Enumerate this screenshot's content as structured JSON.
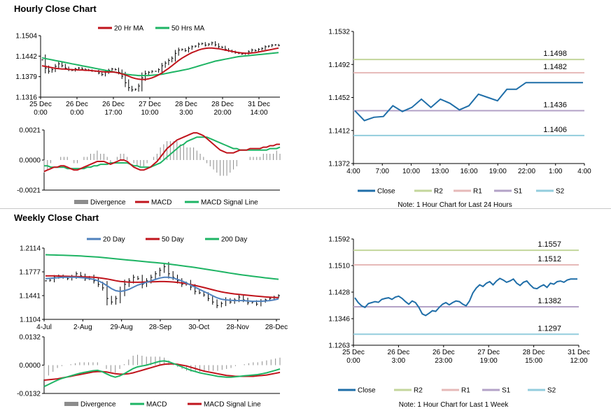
{
  "sections": {
    "hourly_title": "Hourly Close Chart",
    "weekly_title": "Weekly Close Chart"
  },
  "colors": {
    "ma_short": "#c0141c",
    "ma_long": "#1eb464",
    "ma_200": "#1eb464",
    "ma_20_weekly": "#4f81bd",
    "close": "#1f6ea8",
    "r2": "#c3d69b",
    "r1": "#e6b9b8",
    "s1": "#b3a2c7",
    "s2": "#93cddd",
    "divergence": "#8c8c8c",
    "price": "#000000"
  },
  "chart_data": [
    {
      "id": "hourly-price",
      "type": "line",
      "title": "",
      "legend": [
        "20 Hr MA",
        "50 Hrs MA"
      ],
      "yticks": [
        "1.1504",
        "1.1442",
        "1.1379",
        "1.1316"
      ],
      "ylim": [
        1.1316,
        1.1504
      ],
      "xticks": [
        [
          "25 Dec",
          "0:00"
        ],
        [
          "26 Dec",
          "0:00"
        ],
        [
          "26 Dec",
          "17:00"
        ],
        [
          "27 Dec",
          "10:00"
        ],
        [
          "28 Dec",
          "3:00"
        ],
        [
          "28 Dec",
          "20:00"
        ],
        [
          "31 Dec",
          "14:00"
        ]
      ],
      "price": [
        1.143,
        1.1405,
        1.1395,
        1.14,
        1.141,
        1.1418,
        1.1412,
        1.1405,
        1.14,
        1.1398,
        1.1402,
        1.1405,
        1.1402,
        1.14,
        1.1398,
        1.1396,
        1.1395,
        1.139,
        1.1385,
        1.1392,
        1.1398,
        1.1402,
        1.14,
        1.1392,
        1.138,
        1.136,
        1.1345,
        1.1338,
        1.134,
        1.135,
        1.1375,
        1.1388,
        1.1392,
        1.1395,
        1.1395,
        1.14,
        1.1412,
        1.142,
        1.1428,
        1.1435,
        1.145,
        1.146,
        1.1462,
        1.1458,
        1.1465,
        1.147,
        1.1472,
        1.1478,
        1.148,
        1.1475,
        1.1478,
        1.1482,
        1.1476,
        1.147,
        1.1468,
        1.1462,
        1.1458,
        1.1455,
        1.1452,
        1.145,
        1.1448,
        1.145,
        1.1455,
        1.146,
        1.1458,
        1.1462,
        1.1465,
        1.147,
        1.1472,
        1.1475,
        1.1476,
        1.1474
      ],
      "ma20": [
        1.1412,
        1.141,
        1.1408,
        1.1406,
        1.1404,
        1.1403,
        1.1402,
        1.1402,
        1.1401,
        1.14,
        1.14,
        1.1399,
        1.1399,
        1.1398,
        1.1398,
        1.1397,
        1.1396,
        1.1395,
        1.1394,
        1.1393,
        1.1393,
        1.1393,
        1.1392,
        1.139,
        1.1387,
        1.1384,
        1.138,
        1.1376,
        1.1373,
        1.1371,
        1.137,
        1.137,
        1.1372,
        1.1375,
        1.1379,
        1.1384,
        1.139,
        1.1397,
        1.1404,
        1.1412,
        1.142,
        1.1428,
        1.1435,
        1.1441,
        1.1447,
        1.1452,
        1.1456,
        1.146,
        1.1463,
        1.1465,
        1.1466,
        1.1466,
        1.1465,
        1.1464,
        1.1462,
        1.146,
        1.1458,
        1.1456,
        1.1454,
        1.1452,
        1.1451,
        1.145,
        1.145,
        1.1451,
        1.1452,
        1.1454,
        1.1456,
        1.1458,
        1.146,
        1.1462,
        1.1464,
        1.1466
      ],
      "ma50": [
        1.1436,
        1.1434,
        1.1432,
        1.143,
        1.1428,
        1.1426,
        1.1424,
        1.1422,
        1.142,
        1.1418,
        1.1416,
        1.1414,
        1.1412,
        1.141,
        1.1408,
        1.1406,
        1.1404,
        1.1402,
        1.14,
        1.1398,
        1.1396,
        1.1394,
        1.1392,
        1.139,
        1.1388,
        1.1386,
        1.1385,
        1.1384,
        1.1383,
        1.1382,
        1.1382,
        1.1382,
        1.1382,
        1.1383,
        1.1384,
        1.1385,
        1.1386,
        1.1388,
        1.139,
        1.1392,
        1.1394,
        1.1396,
        1.1398,
        1.14,
        1.1402,
        1.1405,
        1.1408,
        1.1411,
        1.1414,
        1.1417,
        1.142,
        1.1423,
        1.1426,
        1.1428,
        1.143,
        1.1432,
        1.1434,
        1.1436,
        1.1438,
        1.144,
        1.1441,
        1.1442,
        1.1443,
        1.1444,
        1.1445,
        1.1446,
        1.1447,
        1.1448,
        1.1449,
        1.145,
        1.1451,
        1.1452
      ]
    },
    {
      "id": "hourly-macd",
      "type": "line",
      "title": "",
      "legend": [
        "Divergence",
        "MACD",
        "MACD Signal Line"
      ],
      "yticks": [
        "0.0021",
        "0.0000",
        "-0.0021"
      ],
      "ylim": [
        -0.0021,
        0.0021
      ],
      "macd": [
        -0.0008,
        -0.0007,
        -0.0006,
        -0.0005,
        -0.0005,
        -0.0004,
        -0.0004,
        -0.0005,
        -0.0006,
        -0.0007,
        -0.0007,
        -0.0006,
        -0.0005,
        -0.0004,
        -0.0003,
        -0.0002,
        -0.0001,
        -0.0001,
        -0.0001,
        -0.0002,
        -0.0003,
        -0.0002,
        -0.0001,
        0.0,
        0.0,
        -0.0001,
        -0.0003,
        -0.0005,
        -0.0006,
        -0.0007,
        -0.0007,
        -0.0006,
        -0.0005,
        -0.0003,
        -0.0001,
        0.0002,
        0.0005,
        0.0008,
        0.001,
        0.0012,
        0.0014,
        0.0015,
        0.0016,
        0.0017,
        0.0018,
        0.0019,
        0.0019,
        0.0018,
        0.0017,
        0.0015,
        0.0013,
        0.0011,
        0.0009,
        0.0007,
        0.0006,
        0.0005,
        0.0005,
        0.0005,
        0.0006,
        0.0007,
        0.0007,
        0.0007,
        0.0008,
        0.0008,
        0.0008,
        0.0008,
        0.0009,
        0.0009,
        0.001,
        0.001,
        0.0011,
        0.0011
      ],
      "signal": [
        -0.0004,
        -0.0004,
        -0.0005,
        -0.0005,
        -0.0005,
        -0.0005,
        -0.0005,
        -0.0006,
        -0.0006,
        -0.0006,
        -0.0006,
        -0.0006,
        -0.0006,
        -0.0005,
        -0.0005,
        -0.0004,
        -0.0004,
        -0.0003,
        -0.0003,
        -0.0003,
        -0.0002,
        -0.0002,
        -0.0002,
        -0.0002,
        -0.0002,
        -0.0002,
        -0.0003,
        -0.0004,
        -0.0004,
        -0.0005,
        -0.0005,
        -0.0005,
        -0.0005,
        -0.0004,
        -0.0003,
        -0.0002,
        0.0,
        0.0002,
        0.0004,
        0.0006,
        0.0008,
        0.001,
        0.0011,
        0.0013,
        0.0014,
        0.0015,
        0.0016,
        0.0016,
        0.0016,
        0.0016,
        0.0015,
        0.0014,
        0.0013,
        0.0012,
        0.0011,
        0.001,
        0.0009,
        0.0008,
        0.0008,
        0.0007,
        0.0007,
        0.0007,
        0.0007,
        0.0007,
        0.0007,
        0.0007,
        0.0007,
        0.0007,
        0.0008,
        0.0008,
        0.0008,
        0.0009
      ]
    },
    {
      "id": "hourly-levels",
      "type": "line",
      "title": "",
      "legend": [
        "Close",
        "R2",
        "R1",
        "S1",
        "S2"
      ],
      "note": "Note: 1 Hour Chart for Last 24 Hours",
      "yticks": [
        "1.1532",
        "1.1492",
        "1.1452",
        "1.1412",
        "1.1372"
      ],
      "ylim": [
        1.1372,
        1.1532
      ],
      "xticks": [
        "4:00",
        "7:00",
        "10:00",
        "13:00",
        "16:00",
        "19:00",
        "22:00",
        "1:00",
        "4:00"
      ],
      "levels": [
        {
          "name": "R2",
          "value": 1.1498,
          "label": "1.1498"
        },
        {
          "name": "R1",
          "value": 1.1482,
          "label": "1.1482"
        },
        {
          "name": "S1",
          "value": 1.1436,
          "label": "1.1436"
        },
        {
          "name": "S2",
          "value": 1.1406,
          "label": "1.1406"
        }
      ],
      "close": [
        1.1436,
        1.1424,
        1.1428,
        1.1429,
        1.1442,
        1.1435,
        1.144,
        1.145,
        1.144,
        1.145,
        1.1445,
        1.1437,
        1.1442,
        1.1456,
        1.1452,
        1.1448,
        1.1462,
        1.1462,
        1.147,
        1.147,
        1.147,
        1.147,
        1.147,
        1.147,
        1.147
      ]
    },
    {
      "id": "weekly-price",
      "type": "line",
      "title": "",
      "legend": [
        "20 Day",
        "50 Day",
        "200 Day"
      ],
      "yticks": [
        "1.2114",
        "1.1777",
        "1.1441",
        "1.1104"
      ],
      "ylim": [
        1.1104,
        1.2114
      ],
      "xticks": [
        "4-Jul",
        "2-Aug",
        "29-Aug",
        "28-Sep",
        "30-Oct",
        "28-Nov",
        "28-Dec"
      ],
      "price": [
        1.165,
        1.166,
        1.17,
        1.172,
        1.17,
        1.168,
        1.171,
        1.175,
        1.172,
        1.168,
        1.17,
        1.165,
        1.16,
        1.155,
        1.14,
        1.135,
        1.14,
        1.15,
        1.16,
        1.165,
        1.17,
        1.168,
        1.16,
        1.165,
        1.17,
        1.175,
        1.18,
        1.185,
        1.175,
        1.17,
        1.165,
        1.16,
        1.162,
        1.156,
        1.15,
        1.148,
        1.145,
        1.14,
        1.135,
        1.13,
        1.133,
        1.138,
        1.135,
        1.138,
        1.142,
        1.138,
        1.134,
        1.135,
        1.132,
        1.136,
        1.138,
        1.14,
        1.142,
        1.144
      ],
      "ma20": [
        1.168,
        1.1685,
        1.169,
        1.1695,
        1.17,
        1.17,
        1.17,
        1.17,
        1.1695,
        1.169,
        1.168,
        1.167,
        1.165,
        1.162,
        1.158,
        1.154,
        1.151,
        1.15,
        1.151,
        1.153,
        1.156,
        1.159,
        1.161,
        1.163,
        1.165,
        1.167,
        1.169,
        1.17,
        1.17,
        1.169,
        1.167,
        1.165,
        1.162,
        1.159,
        1.156,
        1.153,
        1.15,
        1.147,
        1.144,
        1.141,
        1.139,
        1.138,
        1.1375,
        1.137,
        1.137,
        1.137,
        1.1365,
        1.136,
        1.136,
        1.136,
        1.1365,
        1.137,
        1.138,
        1.1395
      ],
      "ma50": [
        1.172,
        1.172,
        1.172,
        1.1718,
        1.1716,
        1.1714,
        1.1712,
        1.171,
        1.1708,
        1.1706,
        1.1704,
        1.17,
        1.1694,
        1.1686,
        1.1676,
        1.1664,
        1.1652,
        1.1642,
        1.1636,
        1.1632,
        1.163,
        1.163,
        1.1632,
        1.1634,
        1.1636,
        1.1638,
        1.164,
        1.164,
        1.1638,
        1.1634,
        1.1628,
        1.162,
        1.161,
        1.1598,
        1.1584,
        1.157,
        1.1556,
        1.154,
        1.1524,
        1.1508,
        1.1494,
        1.1482,
        1.1472,
        1.1464,
        1.1458,
        1.1452,
        1.1446,
        1.144,
        1.1434,
        1.1428,
        1.1422,
        1.1418,
        1.1415,
        1.1412
      ],
      "ma200": [
        1.202,
        1.2018,
        1.2016,
        1.2014,
        1.2012,
        1.201,
        1.2008,
        1.2005,
        1.2002,
        1.1998,
        1.1994,
        1.199,
        1.1986,
        1.198,
        1.1974,
        1.1968,
        1.1962,
        1.1956,
        1.195,
        1.1944,
        1.1938,
        1.1932,
        1.1926,
        1.192,
        1.1914,
        1.1908,
        1.1902,
        1.1896,
        1.1888,
        1.188,
        1.1872,
        1.1864,
        1.1856,
        1.1848,
        1.184,
        1.183,
        1.182,
        1.181,
        1.18,
        1.179,
        1.178,
        1.177,
        1.176,
        1.175,
        1.174,
        1.1732,
        1.1724,
        1.1716,
        1.1708,
        1.17,
        1.1692,
        1.1685,
        1.1678,
        1.1672
      ]
    },
    {
      "id": "weekly-macd",
      "type": "line",
      "title": "",
      "legend": [
        "Divergence",
        "MACD",
        "MACD Signal Line"
      ],
      "yticks": [
        "0.0132",
        "0.0000",
        "-0.0132"
      ],
      "ylim": [
        -0.0132,
        0.0132
      ],
      "macd": [
        -0.01,
        -0.009,
        -0.008,
        -0.007,
        -0.0062,
        -0.0056,
        -0.005,
        -0.0044,
        -0.0038,
        -0.0034,
        -0.003,
        -0.0026,
        -0.0024,
        -0.003,
        -0.004,
        -0.005,
        -0.0056,
        -0.005,
        -0.004,
        -0.0028,
        -0.0016,
        -0.0008,
        -0.0004,
        0.0,
        0.0006,
        0.0012,
        0.0018,
        0.002,
        0.0016,
        0.0008,
        0.0,
        -0.0008,
        -0.0016,
        -0.0024,
        -0.003,
        -0.0036,
        -0.004,
        -0.0044,
        -0.0048,
        -0.0052,
        -0.0054,
        -0.0056,
        -0.0056,
        -0.0054,
        -0.0052,
        -0.005,
        -0.0048,
        -0.0046,
        -0.0044,
        -0.004,
        -0.0036,
        -0.003,
        -0.0024,
        -0.0018
      ],
      "signal": [
        -0.007,
        -0.0068,
        -0.0066,
        -0.0064,
        -0.006,
        -0.0056,
        -0.0052,
        -0.0048,
        -0.0044,
        -0.004,
        -0.0036,
        -0.0032,
        -0.003,
        -0.003,
        -0.0032,
        -0.0036,
        -0.004,
        -0.0042,
        -0.0042,
        -0.004,
        -0.0036,
        -0.003,
        -0.0024,
        -0.0018,
        -0.0012,
        -0.0006,
        0.0,
        0.0004,
        0.0006,
        0.0006,
        0.0004,
        0.0,
        -0.0004,
        -0.001,
        -0.0016,
        -0.0022,
        -0.0028,
        -0.0032,
        -0.0036,
        -0.004,
        -0.0044,
        -0.0048,
        -0.005,
        -0.0052,
        -0.0052,
        -0.0052,
        -0.0052,
        -0.0052,
        -0.005,
        -0.0048,
        -0.0046,
        -0.0042,
        -0.0038,
        -0.0034
      ]
    },
    {
      "id": "weekly-levels",
      "type": "line",
      "title": "",
      "legend": [
        "Close",
        "R2",
        "R1",
        "S1",
        "S2"
      ],
      "note": "Note: 1 Hour Chart for Last 1 Week",
      "yticks": [
        "1.1592",
        "1.1510",
        "1.1428",
        "1.1346",
        "1.1263"
      ],
      "ylim": [
        1.1263,
        1.1592
      ],
      "xticks": [
        [
          "25 Dec",
          "0:00"
        ],
        [
          "26 Dec",
          "3:00"
        ],
        [
          "26 Dec",
          "23:00"
        ],
        [
          "27 Dec",
          "19:00"
        ],
        [
          "28 Dec",
          "15:00"
        ],
        [
          "31 Dec",
          "12:00"
        ]
      ],
      "levels": [
        {
          "name": "R2",
          "value": 1.1557,
          "label": "1.1557"
        },
        {
          "name": "R1",
          "value": 1.1512,
          "label": "1.1512"
        },
        {
          "name": "S1",
          "value": 1.1382,
          "label": "1.1382"
        },
        {
          "name": "S2",
          "value": 1.1297,
          "label": "1.1297"
        }
      ],
      "close": [
        1.141,
        1.1395,
        1.1385,
        1.138,
        1.1392,
        1.1395,
        1.1398,
        1.1396,
        1.1405,
        1.1408,
        1.141,
        1.1405,
        1.1412,
        1.1415,
        1.1408,
        1.1398,
        1.139,
        1.14,
        1.1395,
        1.138,
        1.136,
        1.1355,
        1.1362,
        1.137,
        1.1368,
        1.138,
        1.139,
        1.1395,
        1.1388,
        1.1395,
        1.14,
        1.1398,
        1.139,
        1.1385,
        1.14,
        1.1425,
        1.144,
        1.145,
        1.1445,
        1.1455,
        1.146,
        1.145,
        1.1462,
        1.147,
        1.1465,
        1.1458,
        1.1462,
        1.1468,
        1.1455,
        1.1448,
        1.1458,
        1.1462,
        1.145,
        1.144,
        1.1438,
        1.1445,
        1.145,
        1.1442,
        1.1455,
        1.1452,
        1.146,
        1.1462,
        1.1458,
        1.1465,
        1.1468,
        1.1468,
        1.1468
      ]
    }
  ]
}
